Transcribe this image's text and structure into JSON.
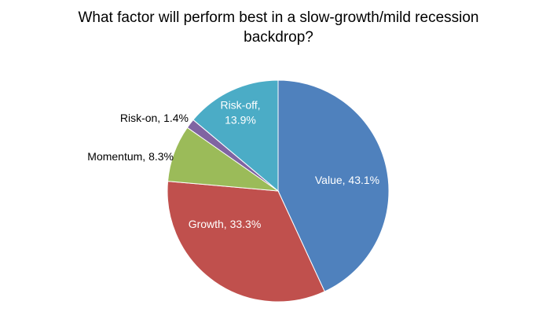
{
  "chart_data": {
    "type": "pie",
    "title_lines": [
      "What factor will perform best in a slow-growth/mild recession",
      "backdrop?"
    ],
    "slices": [
      {
        "name": "Value",
        "value": 43.1,
        "label_lines": [
          "Value, 43.1%"
        ],
        "color": "#4F81BD",
        "label_inside": true,
        "label_color": "#ffffff"
      },
      {
        "name": "Growth",
        "value": 33.3,
        "label_lines": [
          "Growth, 33.3%"
        ],
        "color": "#C0504D",
        "label_inside": true,
        "label_color": "#ffffff"
      },
      {
        "name": "Momentum",
        "value": 8.3,
        "label_lines": [
          "Momentum, 8.3%"
        ],
        "color": "#9BBB59",
        "label_inside": false,
        "label_color": "#000000"
      },
      {
        "name": "Risk-on",
        "value": 1.4,
        "label_lines": [
          "Risk-on, 1.4%"
        ],
        "color": "#8064A2",
        "label_inside": false,
        "label_color": "#000000"
      },
      {
        "name": "Risk-off",
        "value": 13.9,
        "label_lines": [
          "Risk-off,",
          "13.9%"
        ],
        "color": "#4BACC6",
        "label_inside": true,
        "label_color": "#ffffff"
      }
    ],
    "start_angle": "12 o'clock",
    "direction": "clockwise",
    "legend": "none"
  }
}
